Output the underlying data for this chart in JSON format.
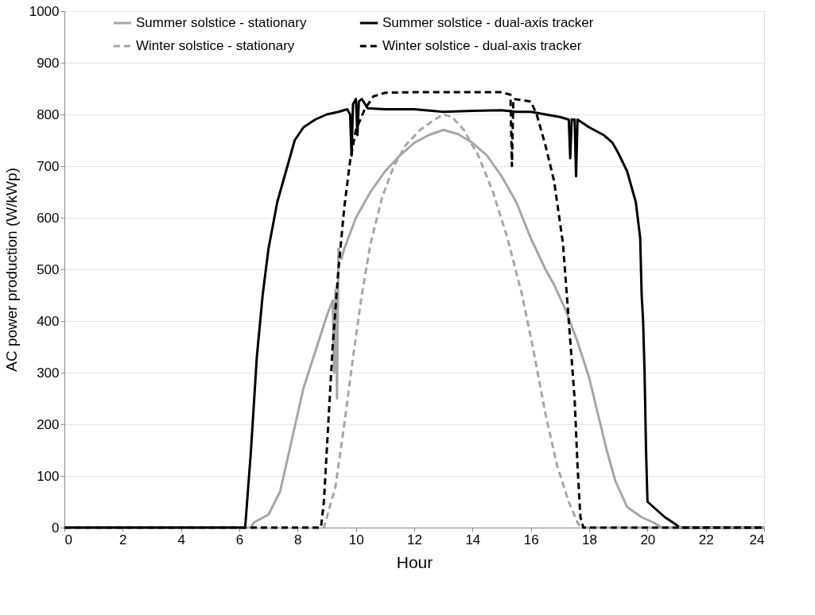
{
  "chart_data": {
    "type": "line",
    "xlabel": "Hour",
    "ylabel": "AC power production (W/kWp)",
    "xlim": [
      0,
      24
    ],
    "xticks": [
      0,
      2,
      4,
      6,
      8,
      10,
      12,
      14,
      16,
      18,
      20,
      22,
      24
    ],
    "ylim": [
      0,
      1000
    ],
    "yticks": [
      0,
      100,
      200,
      300,
      400,
      500,
      600,
      700,
      800,
      900,
      1000
    ],
    "grid": "y",
    "legend": "top",
    "marker": "none",
    "series": [
      {
        "name": "Summer solstice - stationary",
        "color": "#a6a6a6",
        "line_style": "solid",
        "x": [
          0,
          6.4,
          6.5,
          7.0,
          7.4,
          7.8,
          8.2,
          8.6,
          9.0,
          9.2,
          9.25,
          9.3,
          9.35,
          9.4,
          9.5,
          9.6,
          10,
          10.5,
          11,
          11.5,
          12,
          12.5,
          13,
          13.5,
          14,
          14.5,
          15,
          15.5,
          16,
          16.5,
          16.8,
          17.2,
          17.6,
          18,
          18.3,
          18.6,
          18.9,
          19.3,
          19.8,
          20.2,
          20.5,
          24
        ],
        "values": [
          0,
          0,
          10,
          25,
          70,
          170,
          270,
          340,
          410,
          440,
          300,
          460,
          250,
          540,
          520,
          540,
          600,
          650,
          690,
          720,
          745,
          760,
          770,
          762,
          745,
          720,
          680,
          630,
          560,
          500,
          470,
          420,
          360,
          290,
          220,
          150,
          90,
          40,
          20,
          10,
          0,
          0
        ]
      },
      {
        "name": "Summer solstice - dual-axis tracker",
        "color": "#000000",
        "line_style": "solid",
        "x": [
          0,
          6.2,
          6.4,
          6.6,
          6.8,
          7.0,
          7.3,
          7.6,
          7.9,
          8.2,
          8.6,
          9.0,
          9.4,
          9.7,
          9.8,
          9.85,
          9.9,
          10.0,
          10.05,
          10.1,
          10.2,
          10.4,
          11,
          12,
          13,
          14,
          15,
          15.5,
          16,
          16.5,
          17,
          17.3,
          17.35,
          17.4,
          17.5,
          17.55,
          17.6,
          18,
          18.5,
          18.8,
          19,
          19.3,
          19.6,
          19.75,
          19.8,
          19.85,
          19.9,
          19.95,
          20.0,
          20.3,
          20.6,
          21.0,
          21.1,
          24
        ],
        "values": [
          0,
          0,
          150,
          330,
          450,
          540,
          630,
          690,
          750,
          775,
          790,
          800,
          805,
          810,
          800,
          720,
          820,
          830,
          760,
          825,
          830,
          812,
          810,
          810,
          805,
          807,
          808,
          805,
          805,
          800,
          795,
          790,
          715,
          790,
          790,
          680,
          790,
          775,
          760,
          745,
          725,
          690,
          630,
          560,
          450,
          400,
          300,
          150,
          50,
          35,
          20,
          5,
          0,
          0
        ]
      },
      {
        "name": "Winter solstice - stationary",
        "color": "#a6a6a6",
        "line_style": "dashed",
        "x": [
          0,
          8.9,
          9.0,
          9.3,
          9.6,
          9.9,
          10.2,
          10.5,
          10.9,
          11.3,
          11.7,
          12.2,
          12.7,
          13.0,
          13.3,
          13.7,
          14.2,
          14.7,
          15.2,
          15.7,
          16.1,
          16.5,
          16.9,
          17.3,
          17.6,
          17.7,
          24
        ],
        "values": [
          0,
          0,
          20,
          80,
          200,
          330,
          450,
          550,
          640,
          700,
          740,
          770,
          790,
          800,
          795,
          770,
          720,
          650,
          560,
          450,
          340,
          220,
          120,
          50,
          10,
          0,
          0
        ]
      },
      {
        "name": "Winter solstice - dual-axis tracker",
        "color": "#000000",
        "line_style": "dashed",
        "x": [
          0,
          8.8,
          8.9,
          9.0,
          9.2,
          9.4,
          9.6,
          9.8,
          10.0,
          10.3,
          10.6,
          11,
          12,
          13,
          14,
          15,
          15.3,
          15.35,
          15.4,
          16,
          16.2,
          16.5,
          16.8,
          17.1,
          17.3,
          17.5,
          17.6,
          17.7,
          17.8,
          24
        ],
        "values": [
          0,
          0,
          50,
          150,
          350,
          500,
          620,
          710,
          770,
          810,
          835,
          842,
          843,
          843,
          843,
          843,
          838,
          700,
          830,
          825,
          800,
          740,
          670,
          550,
          400,
          250,
          120,
          20,
          0,
          0
        ]
      }
    ]
  }
}
